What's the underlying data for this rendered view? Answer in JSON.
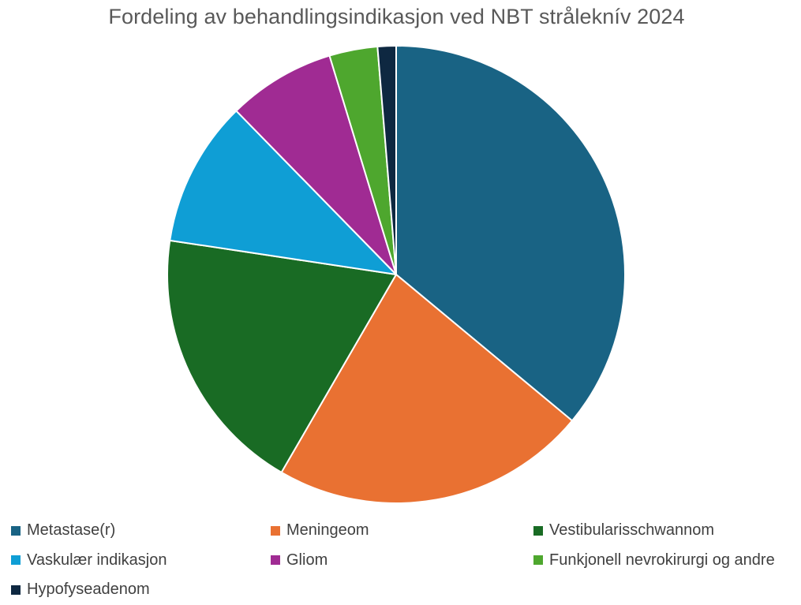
{
  "chart_data": {
    "type": "pie",
    "title": "Fordeling av behandlingsindikasjon ved NBT stråleknív 2024",
    "categories": [
      "Metastase(r)",
      "Meningeom",
      "Vestibularisschwannom",
      "Vaskulær indikasjon",
      "Gliom",
      "Funkjonell nevrokirurgi og andre",
      "Hypofyseadenom"
    ],
    "values": [
      36.0,
      22.3,
      19.0,
      10.3,
      7.6,
      3.4,
      1.3
    ],
    "colors": [
      "#196384",
      "#E97132",
      "#196B24",
      "#0F9ED5",
      "#A02B93",
      "#4EA72E",
      "#0E2841"
    ],
    "start_angle_deg": 0,
    "direction": "clockwise",
    "legend_position": "bottom"
  }
}
